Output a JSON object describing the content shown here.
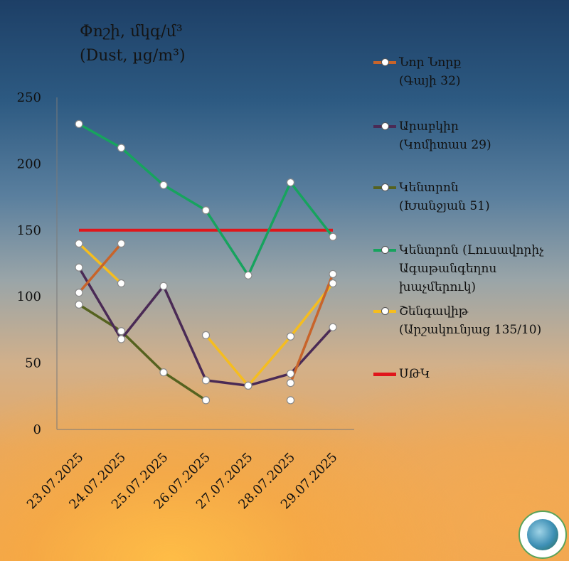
{
  "title": {
    "line1": "Փոշի, մկգ/մ³",
    "line2": "(Dust, µg/m³)"
  },
  "chart_data": {
    "type": "line",
    "categories": [
      "23.07.2025",
      "24.07.2025",
      "25.07.2025",
      "26.07.2025",
      "27.07.2025",
      "28.07.2025",
      "29.07.2025"
    ],
    "ylim": [
      0,
      250
    ],
    "yticks": [
      0,
      50,
      100,
      150,
      200,
      250
    ],
    "grid": false,
    "legend_position": "right",
    "series": [
      {
        "name": "Նոր Նորք (Գայի 32)",
        "legend_lines": [
          "Նոր Նորք",
          "(Գայի 32)"
        ],
        "color": "#c8642a",
        "values": [
          103,
          140,
          null,
          null,
          null,
          35,
          117
        ]
      },
      {
        "name": "Արաբկիր (Կոմիտաս 29)",
        "legend_lines": [
          "Արաբկիր",
          "(Կոմիտաս 29)"
        ],
        "color": "#4a2a55",
        "values": [
          122,
          68,
          108,
          37,
          33,
          42,
          77
        ]
      },
      {
        "name": "Կենտրոն (Խանջյան 51)",
        "legend_lines": [
          "Կենտրոն",
          "(Խանջյան 51)"
        ],
        "color": "#55621f",
        "values": [
          94,
          74,
          43,
          22,
          null,
          22,
          null
        ]
      },
      {
        "name": "Կենտրոն (Լուսավորիչ Ագաթանգեղոս խաչմերուկ)",
        "legend_lines": [
          "Կենտրոն (Լուսավորիչ",
          "Ագաթանգեղոս",
          "խաչմերուկ)"
        ],
        "color": "#17a35e",
        "values": [
          230,
          212,
          184,
          165,
          116,
          186,
          145
        ]
      },
      {
        "name": "Շենգավիթ (Արշակունյաց 135/10)",
        "legend_lines": [
          "Շենգավիթ",
          "(Արշակունյաց 135/10)"
        ],
        "color": "#f5bd1f",
        "values": [
          140,
          110,
          null,
          71,
          33,
          70,
          110
        ]
      },
      {
        "name": "ՍԹԿ",
        "legend_lines": [
          "ՍԹԿ"
        ],
        "color": "#e0161b",
        "values": [
          150,
          150,
          150,
          150,
          150,
          150,
          150
        ],
        "limit": true
      }
    ]
  }
}
